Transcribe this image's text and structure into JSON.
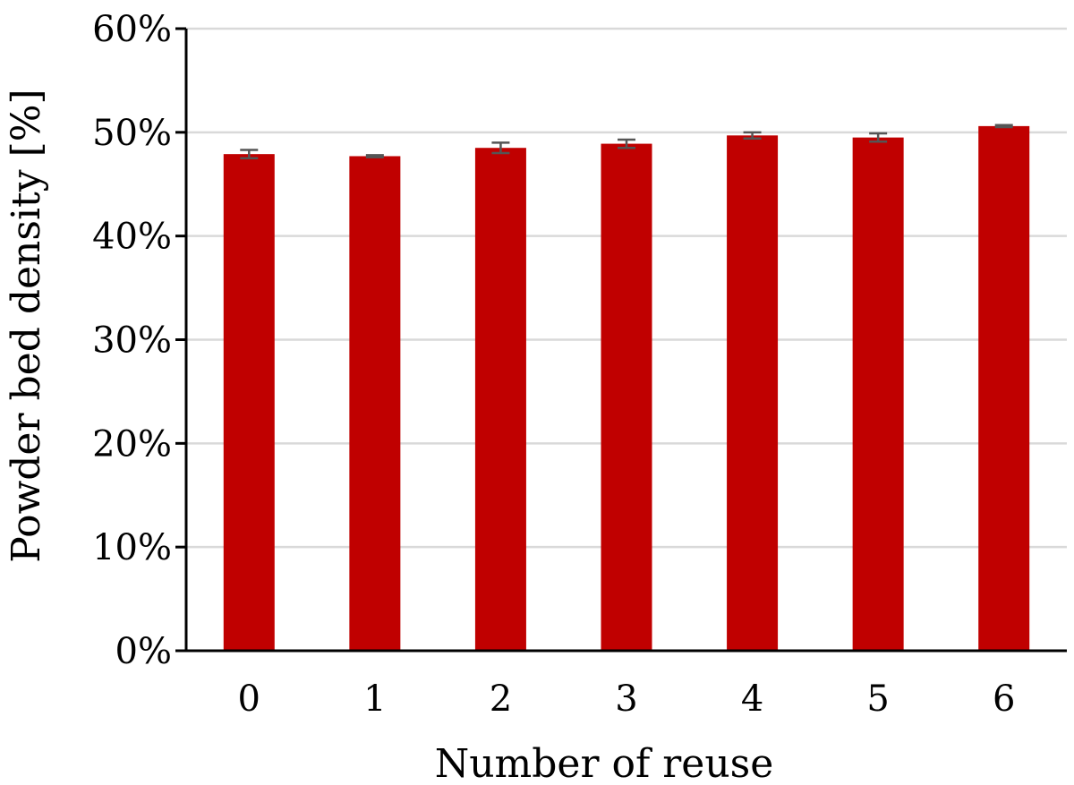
{
  "chart_data": {
    "type": "bar",
    "categories": [
      "0",
      "1",
      "2",
      "3",
      "4",
      "5",
      "6"
    ],
    "values": [
      47.9,
      47.7,
      48.5,
      48.9,
      49.7,
      49.5,
      50.6
    ],
    "errors": [
      0.4,
      0.1,
      0.5,
      0.4,
      0.3,
      0.4,
      0.1
    ],
    "xlabel": "Number of reuse",
    "ylabel": "Powder bed density [%]",
    "ylim": [
      0,
      60
    ],
    "yticks": [
      0,
      10,
      20,
      30,
      40,
      50,
      60
    ],
    "ytick_labels": [
      "0%",
      "10%",
      "20%",
      "30%",
      "40%",
      "50%",
      "60%"
    ],
    "grid": true,
    "bar_color": "#c00000",
    "error_color": "#555555"
  }
}
